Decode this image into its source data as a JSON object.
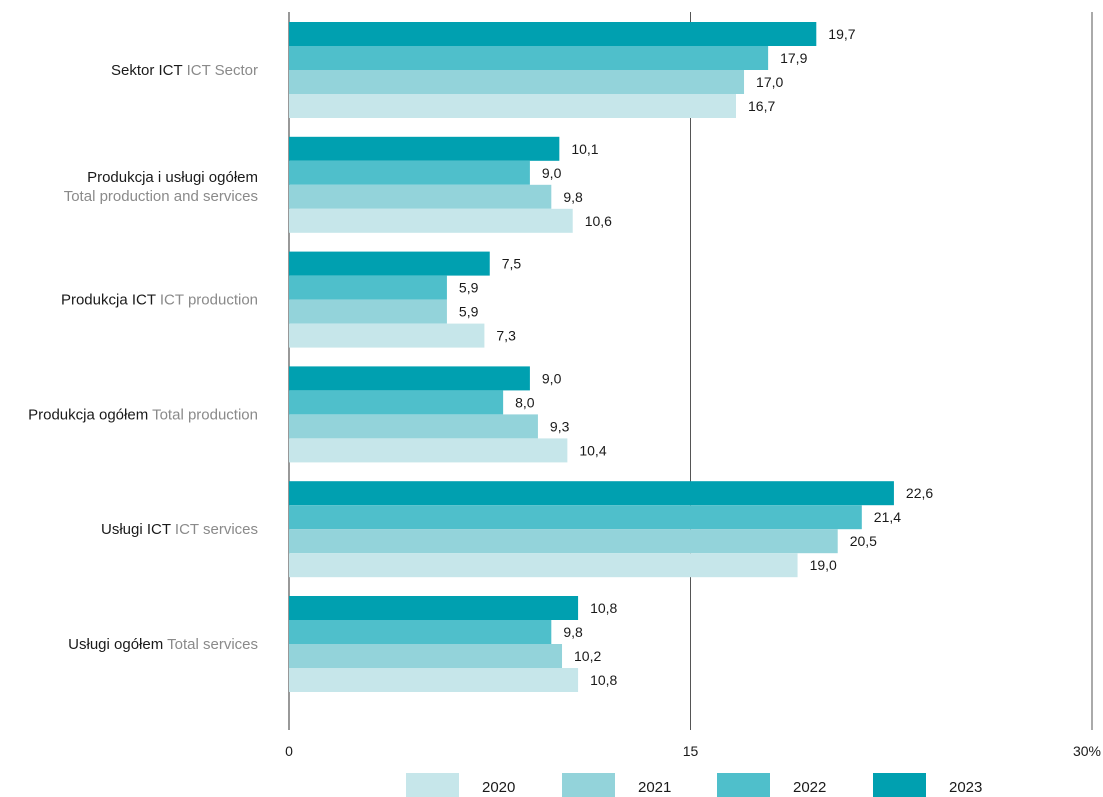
{
  "chart_data": {
    "type": "bar",
    "orientation": "horizontal",
    "categories": [
      {
        "pl": "Sektor ICT",
        "en": "ICT Sector"
      },
      {
        "pl": "Produkcja i usługi ogółem",
        "en": "Total production and services"
      },
      {
        "pl": "Produkcja ICT",
        "en": "ICT production"
      },
      {
        "pl": "Produkcja ogółem",
        "en": "Total production"
      },
      {
        "pl": "Usługi ICT",
        "en": "ICT services"
      },
      {
        "pl": "Usługi ogółem",
        "en": "Total services"
      }
    ],
    "series": [
      {
        "name": "2023",
        "color": "#00a0b0",
        "values": [
          19.7,
          10.1,
          7.5,
          9.0,
          22.6,
          10.8
        ],
        "labels": [
          "19,7",
          "10,1",
          "7,5",
          "9,0",
          "22,6",
          "10,8"
        ]
      },
      {
        "name": "2022",
        "color": "#4fbfcb",
        "values": [
          17.9,
          9.0,
          5.9,
          8.0,
          21.4,
          9.8
        ],
        "labels": [
          "17,9",
          "9,0",
          "5,9",
          "8,0",
          "21,4",
          "9,8"
        ]
      },
      {
        "name": "2021",
        "color": "#93d3da",
        "values": [
          17.0,
          9.8,
          5.9,
          9.3,
          20.5,
          10.2
        ],
        "labels": [
          "17,0",
          "9,8",
          "5,9",
          "9,3",
          "20,5",
          "10,2"
        ]
      },
      {
        "name": "2020",
        "color": "#c6e6ea",
        "values": [
          16.7,
          10.6,
          7.3,
          10.4,
          19.0,
          10.8
        ],
        "labels": [
          "16,7",
          "10,6",
          "7,3",
          "10,4",
          "19,0",
          "10,8"
        ]
      }
    ],
    "xlim": [
      0,
      30
    ],
    "ticks": [
      {
        "value": 0,
        "label": "0"
      },
      {
        "value": 15,
        "label": "15"
      },
      {
        "value": 30,
        "label": "30%"
      }
    ],
    "legend": {
      "placement": "bottom",
      "items": [
        {
          "name": "2020",
          "color": "#c6e6ea"
        },
        {
          "name": "2021",
          "color": "#93d3da"
        },
        {
          "name": "2022",
          "color": "#4fbfcb"
        },
        {
          "name": "2023",
          "color": "#00a0b0"
        }
      ]
    },
    "grid": {
      "vertical_at": [
        15,
        30
      ]
    }
  }
}
